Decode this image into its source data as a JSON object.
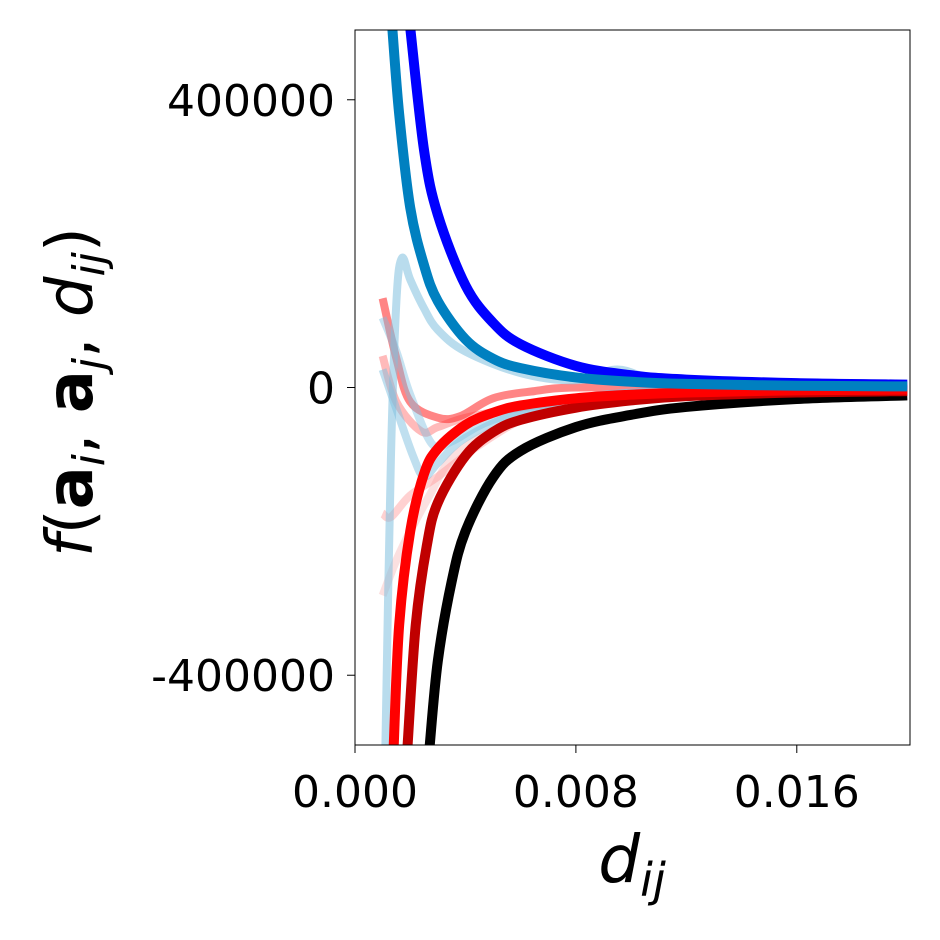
{
  "chart_data": {
    "type": "line",
    "title": "",
    "xlabel": {
      "main": "d",
      "sub": "ij"
    },
    "ylabel": {
      "f": "f",
      "open": "(",
      "a1": "a",
      "s1": "i",
      "c1": ", ",
      "a2": "a",
      "s2": "j",
      "c2": ", ",
      "d": "d",
      "s3": "ij",
      "close": ")"
    },
    "xlim": [
      0,
      0.0201
    ],
    "ylim": [
      -497000,
      497000
    ],
    "xticks": [
      0,
      0.008,
      0.016
    ],
    "xtick_labels": [
      "0.000",
      "0.008",
      "0.016"
    ],
    "yticks": [
      400000,
      0,
      -400000
    ],
    "ytick_labels": [
      "400000",
      "0",
      "-400000"
    ],
    "grid": false,
    "series": [
      {
        "color": "#f4a6a6",
        "alpha": 0.35,
        "x": [
          0.001,
          0.0015,
          0.002,
          0.0027,
          0.0035,
          0.005,
          0.007,
          0.01,
          0.014,
          0.02
        ],
        "y": [
          -289000,
          -240000,
          -200000,
          -150000,
          -99000,
          -60000,
          -35000,
          -18000,
          -9000,
          -5000
        ]
      },
      {
        "color": "#ff9999",
        "alpha": 0.45,
        "x": [
          0.001,
          0.0013,
          0.002,
          0.003,
          0.0045,
          0.0062,
          0.008,
          0.011,
          0.015,
          0.02
        ],
        "y": [
          -175000,
          -180000,
          -150000,
          -124000,
          -80000,
          -42000,
          -25000,
          -12000,
          -6000,
          -3000
        ]
      },
      {
        "color": "#ff6666",
        "alpha": 0.45,
        "x": [
          0.001,
          0.0015,
          0.0024,
          0.003,
          0.004,
          0.006,
          0.009,
          0.013,
          0.02
        ],
        "y": [
          44000,
          -20000,
          -61000,
          -55000,
          -42000,
          -28000,
          -14000,
          -7000,
          -3000
        ]
      },
      {
        "color": "#ff3333",
        "alpha": 0.6,
        "x": [
          0.001,
          0.0015,
          0.002,
          0.003,
          0.0038,
          0.005,
          0.0065,
          0.008,
          0.012,
          0.02
        ],
        "y": [
          124000,
          40000,
          -20000,
          -42000,
          -40000,
          -15000,
          -5000,
          0,
          -1000,
          -1000
        ]
      },
      {
        "color": "#7fbfdf",
        "alpha": 0.45,
        "x": [
          0.001,
          0.0015,
          0.002,
          0.0028,
          0.0035,
          0.005,
          0.008,
          0.012,
          0.02
        ],
        "y": [
          97000,
          50000,
          -10000,
          -79000,
          -75000,
          -45000,
          -15000,
          -5000,
          -2000
        ]
      },
      {
        "color": "#7fbfdf",
        "alpha": 0.5,
        "x": [
          0.001,
          0.0015,
          0.0021,
          0.0025,
          0.003,
          0.004,
          0.006,
          0.009,
          0.014,
          0.02
        ],
        "y": [
          25000,
          -30000,
          -95000,
          -124000,
          -105000,
          -70000,
          -35000,
          -10000,
          -3000,
          -1000
        ]
      },
      {
        "color": "#7fbfdf",
        "alpha": 0.55,
        "x": [
          0.0011,
          0.0013,
          0.0015,
          0.0017,
          0.002,
          0.0025,
          0.003,
          0.004,
          0.006,
          0.008,
          0.0095,
          0.011,
          0.014,
          0.02
        ],
        "y": [
          -500000,
          -100000,
          120000,
          180000,
          150000,
          110000,
          80000,
          50000,
          20000,
          10000,
          25000,
          10000,
          3000,
          1000
        ]
      },
      {
        "color": "#000000",
        "alpha": 1,
        "x": [
          0.0027,
          0.003,
          0.0035,
          0.004,
          0.005,
          0.006,
          0.008,
          0.01,
          0.012,
          0.016,
          0.02
        ],
        "y": [
          -500000,
          -380000,
          -270000,
          -200000,
          -125000,
          -88000,
          -55000,
          -38000,
          -27000,
          -16000,
          -11000
        ]
      },
      {
        "color": "#c00000",
        "alpha": 1,
        "x": [
          0.0019,
          0.0022,
          0.0026,
          0.003,
          0.004,
          0.005,
          0.006,
          0.008,
          0.01,
          0.012,
          0.016,
          0.02
        ],
        "y": [
          -500000,
          -330000,
          -220000,
          -160000,
          -95000,
          -62000,
          -45000,
          -28000,
          -18000,
          -12000,
          -7000,
          -5000
        ]
      },
      {
        "color": "#ff0000",
        "alpha": 1,
        "x": [
          0.0014,
          0.0016,
          0.002,
          0.0025,
          0.003,
          0.004,
          0.005,
          0.006,
          0.008,
          0.01,
          0.012,
          0.016,
          0.02
        ],
        "y": [
          -500000,
          -330000,
          -200000,
          -120000,
          -85000,
          -52000,
          -35000,
          -25000,
          -15000,
          -10000,
          -7000,
          -4000,
          -3000
        ]
      },
      {
        "color": "#0000ff",
        "alpha": 1,
        "x": [
          0.002,
          0.0025,
          0.003,
          0.004,
          0.005,
          0.006,
          0.008,
          0.01,
          0.012,
          0.016,
          0.02
        ],
        "y": [
          500000,
          330000,
          240000,
          142000,
          90000,
          60000,
          30000,
          17000,
          11000,
          6000,
          4000
        ]
      },
      {
        "color": "#0080c0",
        "alpha": 1,
        "x": [
          0.00135,
          0.0016,
          0.002,
          0.0025,
          0.003,
          0.004,
          0.005,
          0.006,
          0.008,
          0.01,
          0.012,
          0.016,
          0.02
        ],
        "y": [
          500000,
          380000,
          250000,
          170000,
          120000,
          67000,
          40000,
          27000,
          14000,
          8000,
          5000,
          2500,
          1500
        ]
      }
    ]
  }
}
